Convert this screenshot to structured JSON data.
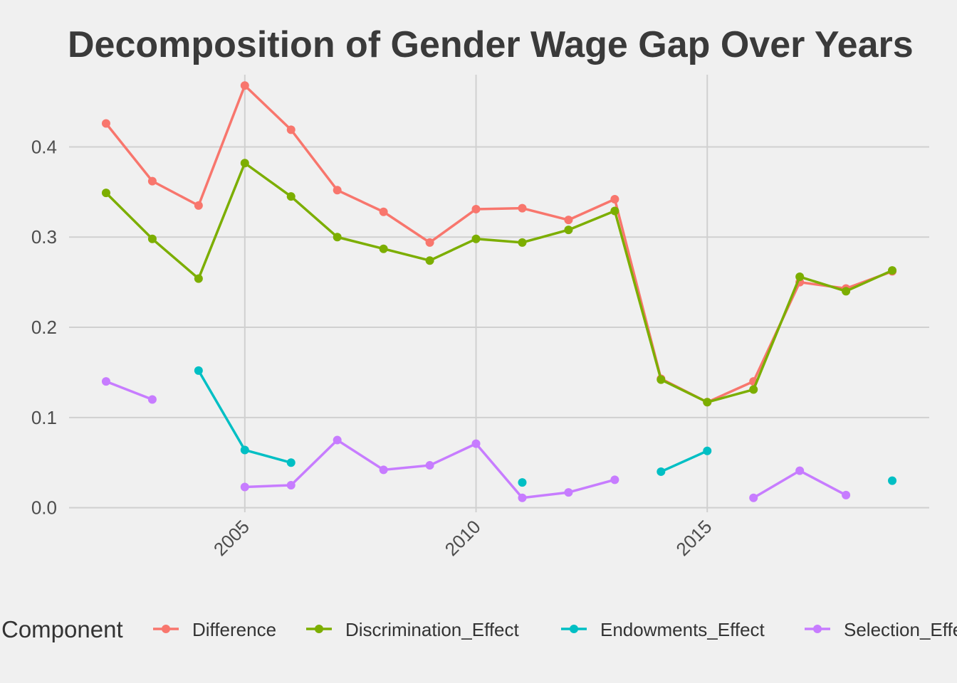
{
  "chart_data": {
    "type": "line",
    "title": "Decomposition of Gender Wage Gap Over Years",
    "xlabel": "",
    "ylabel": "",
    "xlim": [
      2001.2,
      2019.8
    ],
    "ylim": [
      -0.005,
      0.48
    ],
    "x_ticks": [
      2005,
      2010,
      2015
    ],
    "y_ticks": [
      0.0,
      0.1,
      0.2,
      0.3,
      0.4
    ],
    "y_tick_labels": [
      "0.0",
      "0.1",
      "0.2",
      "0.3",
      "0.4"
    ],
    "grid": true,
    "legend": {
      "title": "Component",
      "position": "bottom"
    },
    "series": [
      {
        "name": "Difference",
        "color": "#f8766d",
        "points": [
          [
            2002,
            0.426
          ],
          [
            2003,
            0.362
          ],
          [
            2004,
            0.335
          ],
          [
            2005,
            0.468
          ],
          [
            2006,
            0.419
          ],
          [
            2007,
            0.352
          ],
          [
            2008,
            0.328
          ],
          [
            2009,
            0.294
          ],
          [
            2010,
            0.331
          ],
          [
            2011,
            0.332
          ],
          [
            2012,
            0.319
          ],
          [
            2013,
            0.342
          ],
          [
            2014,
            0.143
          ],
          [
            2015,
            0.117
          ],
          [
            2016,
            0.14
          ],
          [
            2017,
            0.25
          ],
          [
            2018,
            0.243
          ],
          [
            2019,
            0.262
          ]
        ]
      },
      {
        "name": "Discrimination_Effect",
        "color": "#7cae00",
        "points": [
          [
            2002,
            0.349
          ],
          [
            2003,
            0.298
          ],
          [
            2004,
            0.254
          ],
          [
            2005,
            0.382
          ],
          [
            2006,
            0.345
          ],
          [
            2007,
            0.3
          ],
          [
            2008,
            0.287
          ],
          [
            2009,
            0.274
          ],
          [
            2010,
            0.298
          ],
          [
            2011,
            0.294
          ],
          [
            2012,
            0.308
          ],
          [
            2013,
            0.329
          ],
          [
            2014,
            0.142
          ],
          [
            2015,
            0.117
          ],
          [
            2016,
            0.131
          ],
          [
            2017,
            0.256
          ],
          [
            2018,
            0.24
          ],
          [
            2019,
            0.263
          ]
        ]
      },
      {
        "name": "Endowments_Effect",
        "color": "#00bfc4",
        "points": [
          [
            2004,
            0.152
          ],
          [
            2005,
            0.064
          ],
          [
            2006,
            0.05
          ],
          [
            2011,
            0.028
          ],
          [
            2014,
            0.04
          ],
          [
            2015,
            0.063
          ],
          [
            2019,
            0.03
          ]
        ]
      },
      {
        "name": "Selection_Effect",
        "color": "#c77cff",
        "points": [
          [
            2002,
            0.14
          ],
          [
            2003,
            0.12
          ],
          [
            2005,
            0.023
          ],
          [
            2006,
            0.025
          ],
          [
            2007,
            0.075
          ],
          [
            2008,
            0.042
          ],
          [
            2009,
            0.047
          ],
          [
            2010,
            0.071
          ],
          [
            2011,
            0.011
          ],
          [
            2012,
            0.017
          ],
          [
            2013,
            0.031
          ],
          [
            2016,
            0.011
          ],
          [
            2017,
            0.041
          ],
          [
            2018,
            0.014
          ]
        ]
      }
    ]
  }
}
